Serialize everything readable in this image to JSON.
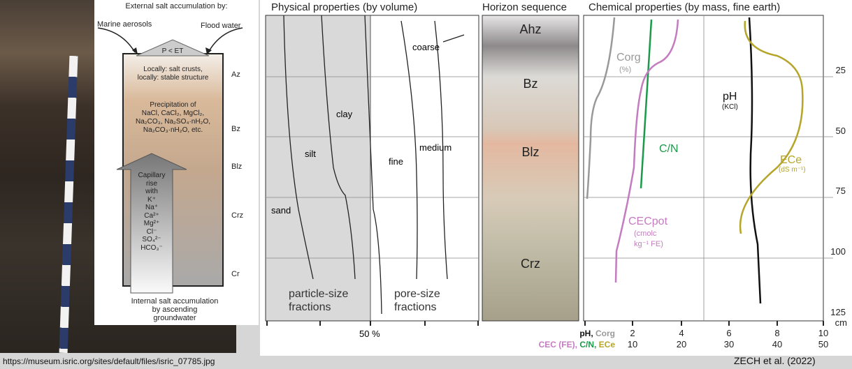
{
  "diagram": {
    "top_title": "External salt accumulation by:",
    "left_source": "Marine aerosols",
    "right_source": "Flood water",
    "roof_label": "P < ET",
    "zone1": [
      "Locally: salt crusts,",
      "locally: stable structure"
    ],
    "zone2": [
      "Precipitation of",
      "NaCl, CaCl₂, MgCl₂,",
      "Na₂CO₃, Na₂SO₄·nH₂O,",
      "Na₂CO₃·nH₂O, etc."
    ],
    "arrow_text": [
      "Capillary",
      "rise",
      "with",
      "K⁺",
      "Na⁺",
      "Ca²⁺",
      "Mg²⁺",
      "Cl⁻",
      "SO₄²⁻",
      "HCO₃⁻"
    ],
    "bottom": [
      "Internal salt accumulation",
      "by ascending",
      "groundwater"
    ],
    "horizons": [
      "Az",
      "Bz",
      "Blz",
      "Crz",
      "Cr"
    ]
  },
  "figure": {
    "physical_title": "Physical properties (by volume)",
    "horizon_title": "Horizon sequence",
    "chemical_title": "Chemical properties (by mass, fine earth)",
    "physical_labels": {
      "sand": "sand",
      "silt": "silt",
      "clay": "clay",
      "fine": "fine",
      "medium": "medium",
      "coarse": "coarse",
      "particle": [
        "particle-size",
        "fractions"
      ],
      "pore": [
        "pore-size",
        "fractions"
      ],
      "axis_50": "50 %"
    },
    "horizons": [
      "Ahz",
      "Bz",
      "Blz",
      "Crz"
    ],
    "chem_labels": {
      "corg": "Corg",
      "corg_unit": "(%)",
      "cn": "C/N",
      "ph": "pH",
      "ph_unit": "(KCl)",
      "ece": "ECe",
      "ece_unit": "(dS m⁻¹)",
      "cec": "CECpot",
      "cec_unit1": "(cmolc",
      "cec_unit2": "kg⁻¹ FE)"
    },
    "depth_ticks": [
      "25",
      "50",
      "75",
      "100",
      "125"
    ],
    "depth_unit": "cm",
    "axis_row1_label": [
      "pH, ",
      "Corg"
    ],
    "axis_row1_values": [
      "2",
      "4",
      "6",
      "8",
      "10"
    ],
    "axis_row2_label": [
      "CEC (FE), ",
      "C/N, ",
      "ECe"
    ],
    "axis_row2_values": [
      "10",
      "20",
      "30",
      "40",
      "50"
    ],
    "colors": {
      "corg": "#999999",
      "cn": "#1a9a4a",
      "cec": "#c47cc0",
      "ece": "#b5a52a",
      "ph": "#111111"
    }
  },
  "captions": {
    "source_url": "https://museum.isric.org/sites/default/files/isric_07785.jpg",
    "citation": "ZECH et al. (2022)"
  }
}
